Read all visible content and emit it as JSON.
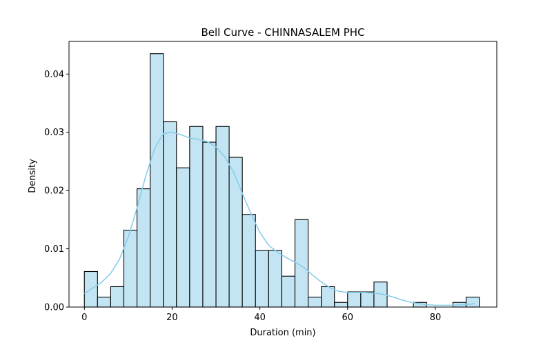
{
  "chart_data": {
    "type": "bar",
    "title": "Bell Curve - CHINNASALEM  PHC",
    "xlabel": "Duration (min)",
    "ylabel": "Density",
    "xlim": [
      -3.5,
      94
    ],
    "ylim": [
      0,
      0.0456
    ],
    "xticks": [
      0,
      20,
      40,
      60,
      80
    ],
    "xtick_labels": [
      "0",
      "20",
      "40",
      "60",
      "80"
    ],
    "yticks": [
      0.0,
      0.01,
      0.02,
      0.03,
      0.04
    ],
    "ytick_labels": [
      "0.00",
      "0.01",
      "0.02",
      "0.03",
      "0.04"
    ],
    "grid": false,
    "legend": "none",
    "bin_width": 3,
    "bins": [
      {
        "x0": 0,
        "x1": 3,
        "density": 0.0061
      },
      {
        "x0": 3,
        "x1": 6,
        "density": 0.0017
      },
      {
        "x0": 6,
        "x1": 9,
        "density": 0.0035
      },
      {
        "x0": 9,
        "x1": 12,
        "density": 0.0132
      },
      {
        "x0": 12,
        "x1": 15,
        "density": 0.0203
      },
      {
        "x0": 15,
        "x1": 18,
        "density": 0.0435
      },
      {
        "x0": 18,
        "x1": 21,
        "density": 0.0318
      },
      {
        "x0": 21,
        "x1": 24,
        "density": 0.0239
      },
      {
        "x0": 24,
        "x1": 27,
        "density": 0.031
      },
      {
        "x0": 27,
        "x1": 30,
        "density": 0.0283
      },
      {
        "x0": 30,
        "x1": 33,
        "density": 0.031
      },
      {
        "x0": 33,
        "x1": 36,
        "density": 0.0257
      },
      {
        "x0": 36,
        "x1": 39,
        "density": 0.0159
      },
      {
        "x0": 39,
        "x1": 42,
        "density": 0.0097
      },
      {
        "x0": 42,
        "x1": 45,
        "density": 0.0097
      },
      {
        "x0": 45,
        "x1": 48,
        "density": 0.0053
      },
      {
        "x0": 48,
        "x1": 51,
        "density": 0.015
      },
      {
        "x0": 51,
        "x1": 54,
        "density": 0.0017
      },
      {
        "x0": 54,
        "x1": 57,
        "density": 0.0035
      },
      {
        "x0": 57,
        "x1": 60,
        "density": 0.0008
      },
      {
        "x0": 60,
        "x1": 63,
        "density": 0.0026
      },
      {
        "x0": 63,
        "x1": 66,
        "density": 0.0026
      },
      {
        "x0": 66,
        "x1": 69,
        "density": 0.0043
      },
      {
        "x0": 69,
        "x1": 72,
        "density": 0.0
      },
      {
        "x0": 72,
        "x1": 75,
        "density": 0.0
      },
      {
        "x0": 75,
        "x1": 78,
        "density": 0.0008
      },
      {
        "x0": 78,
        "x1": 81,
        "density": 0.0
      },
      {
        "x0": 81,
        "x1": 84,
        "density": 0.0
      },
      {
        "x0": 84,
        "x1": 87,
        "density": 0.0008
      },
      {
        "x0": 87,
        "x1": 90,
        "density": 0.0017
      }
    ],
    "kde": {
      "x": [
        0,
        2,
        4,
        6,
        8,
        10,
        12,
        14,
        16,
        18,
        20,
        22,
        24,
        26,
        28,
        30,
        32,
        34,
        36,
        38,
        40,
        42,
        44,
        46,
        48,
        50,
        52,
        54,
        56,
        58,
        60,
        62,
        64,
        66,
        68,
        70,
        72,
        74,
        76,
        78,
        80,
        82,
        84,
        86,
        88,
        89
      ],
      "y": [
        0.0023,
        0.0033,
        0.0043,
        0.0058,
        0.0082,
        0.012,
        0.017,
        0.0225,
        0.0272,
        0.0298,
        0.03,
        0.0296,
        0.029,
        0.0288,
        0.0284,
        0.0275,
        0.0258,
        0.0232,
        0.0195,
        0.016,
        0.0128,
        0.0106,
        0.0094,
        0.0085,
        0.0077,
        0.0068,
        0.0055,
        0.0043,
        0.0033,
        0.0027,
        0.0025,
        0.0025,
        0.0025,
        0.0024,
        0.0022,
        0.0018,
        0.0013,
        0.0009,
        0.0006,
        0.0004,
        0.0003,
        0.0003,
        0.0003,
        0.0004,
        0.0005,
        0.0006
      ]
    },
    "colors": {
      "bar_fill": "#c3e4f2",
      "bar_edge": "#000000",
      "kde_line": "#87ceeb",
      "axis": "#000000",
      "text": "#000000"
    }
  }
}
